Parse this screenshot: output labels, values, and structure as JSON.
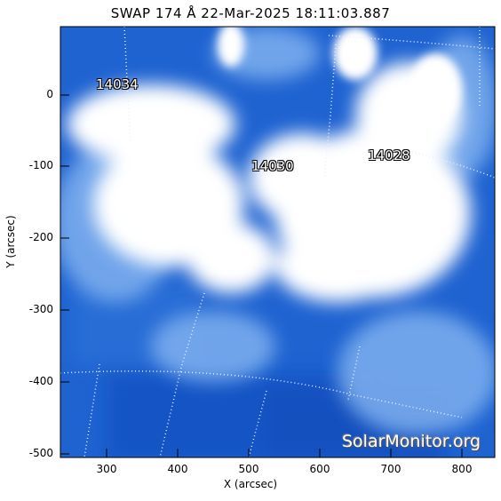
{
  "title": "SWAP 174 Å 22-Mar-2025 18:11:03.887",
  "axes": {
    "xlabel": "X (arcsec)",
    "ylabel": "Y (arcsec)",
    "xticks": [
      "300",
      "400",
      "500",
      "600",
      "700",
      "800"
    ],
    "yticks": [
      "0",
      "-100",
      "-200",
      "-300",
      "-400",
      "-500"
    ]
  },
  "active_regions": [
    {
      "label": "14034"
    },
    {
      "label": "14030"
    },
    {
      "label": "14028"
    }
  ],
  "watermark": "SolarMonitor.org",
  "colors": {
    "background": "#1a5fcf",
    "bright": "#ffffff",
    "grid": "#e8eefc"
  }
}
